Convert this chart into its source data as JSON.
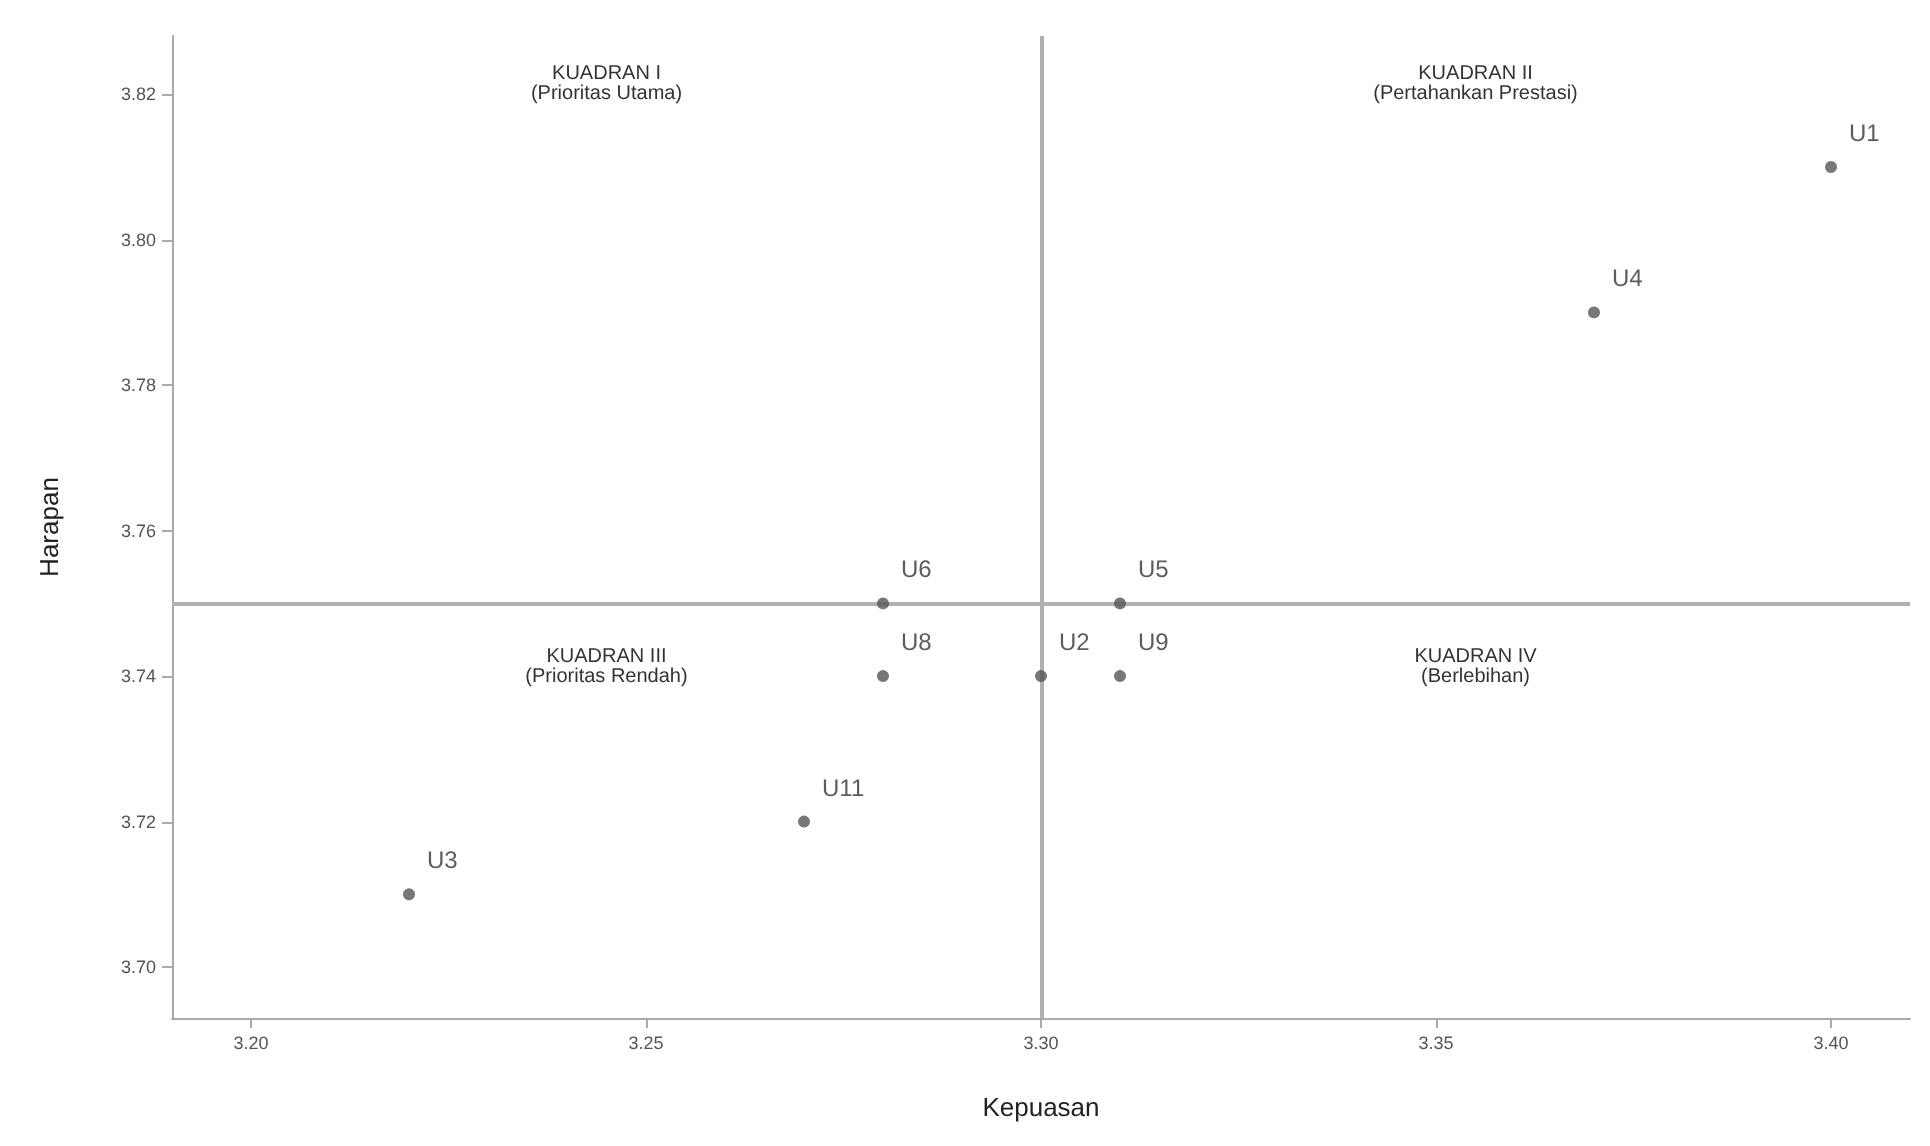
{
  "chart_data": {
    "type": "scatter",
    "xlabel": "Kepuasan",
    "ylabel": "Harapan",
    "x": [
      3.4,
      3.37,
      3.28,
      3.31,
      3.28,
      3.3,
      3.31,
      3.27,
      3.22
    ],
    "values": [
      3.81,
      3.79,
      3.75,
      3.75,
      3.74,
      3.74,
      3.74,
      3.72,
      3.71
    ],
    "color": "#555555",
    "marker": "circle",
    "grid": false,
    "xlim": [
      3.19,
      3.41
    ],
    "xticks": [
      {
        "value": 3.2,
        "label": "3.20"
      },
      3.25,
      {
        "value": 3.3,
        "label": "3.30"
      },
      3.35,
      {
        "value": 3.4,
        "label": "3.40"
      }
    ],
    "ylim": [
      3.693,
      3.828
    ],
    "yticks": [
      {
        "value": 3.7,
        "label": "3.70"
      },
      3.72,
      3.74,
      3.76,
      3.78,
      {
        "value": 3.8,
        "label": "3.80"
      },
      3.82
    ],
    "ref_lines": [
      {
        "axis": "x",
        "value": 3.3,
        "color": "#b0b0b0"
      },
      {
        "axis": "y",
        "value": 3.75,
        "color": "#b0b0b0"
      }
    ],
    "annotations": [
      "KUADRAN I\n(Prioritas Utama)",
      "KUADRAN II\n(Pertahankan Prestasi)",
      "KUADRAN III\n(Prioritas Rendah)",
      "KUADRAN IV\n(Berlebihan)",
      {
        "text": "U1",
        "x": 3.4,
        "y": 3.81
      },
      {
        "text": "U4",
        "x": 3.37,
        "y": 3.79
      },
      {
        "text": "U6",
        "x": 3.28,
        "y": 3.75
      },
      {
        "text": "U5",
        "x": 3.31,
        "y": 3.75
      },
      {
        "text": "U8",
        "x": 3.28,
        "y": 3.74
      },
      {
        "text": "U2",
        "x": 3.3,
        "y": 3.74
      },
      {
        "text": "U9",
        "x": 3.31,
        "y": 3.74
      },
      {
        "text": "U11",
        "x": 3.27,
        "y": 3.72
      },
      {
        "text": "U3",
        "x": 3.22,
        "y": 3.71
      }
    ]
  }
}
